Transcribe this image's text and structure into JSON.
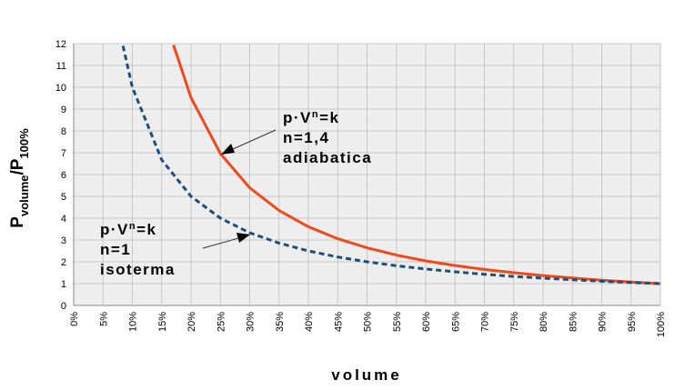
{
  "chart_data": {
    "type": "line",
    "xlabel": "volume",
    "ylabel": {
      "base1": "P",
      "sub1": "volume",
      "slash": "/",
      "base2": "P",
      "sub2": "100%"
    },
    "xlim": [
      0,
      100
    ],
    "ylim": [
      0,
      12
    ],
    "x_ticks": [
      "0%",
      "5%",
      "10%",
      "15%",
      "20%",
      "25%",
      "30%",
      "35%",
      "40%",
      "45%",
      "50%",
      "55%",
      "60%",
      "65%",
      "70%",
      "75%",
      "80%",
      "85%",
      "90%",
      "95%",
      "100%"
    ],
    "y_ticks": [
      "0",
      "1",
      "2",
      "3",
      "4",
      "5",
      "6",
      "7",
      "8",
      "9",
      "10",
      "11",
      "12"
    ],
    "grid": true,
    "series": [
      {
        "name": "adiabatica",
        "exponent": 1.4,
        "color": "#f0491c",
        "style": "solid",
        "x": [
          17,
          20,
          25,
          30,
          35,
          40,
          45,
          50,
          55,
          60,
          65,
          70,
          75,
          80,
          85,
          90,
          95,
          100
        ],
        "values": [
          11.94,
          9.52,
          6.96,
          5.39,
          4.35,
          3.61,
          3.06,
          2.64,
          2.31,
          2.04,
          1.83,
          1.65,
          1.5,
          1.37,
          1.26,
          1.16,
          1.07,
          1.0
        ]
      },
      {
        "name": "isoterma",
        "exponent": 1,
        "color": "#1f4e79",
        "style": "dashed",
        "x": [
          8.4,
          10,
          15,
          20,
          25,
          30,
          35,
          40,
          45,
          50,
          55,
          60,
          65,
          70,
          75,
          80,
          85,
          90,
          95,
          100
        ],
        "values": [
          11.9,
          10.0,
          6.67,
          5.0,
          4.0,
          3.33,
          2.86,
          2.5,
          2.22,
          2.0,
          1.82,
          1.67,
          1.54,
          1.43,
          1.33,
          1.25,
          1.18,
          1.11,
          1.05,
          1.0
        ]
      }
    ],
    "annotations": [
      {
        "id": "adiabatica",
        "line1_base": "p·V",
        "line1_exp": "n",
        "line1_rest": "=k",
        "line2": "n=1,4",
        "line3": "adiabatica",
        "arrow_to": [
          25,
          6.96
        ]
      },
      {
        "id": "isoterma",
        "line1_base": "p·V",
        "line1_exp": "n",
        "line1_rest": "=k",
        "line2": "n=1",
        "line3": "isoterma",
        "arrow_to": [
          30,
          3.33
        ]
      }
    ]
  }
}
